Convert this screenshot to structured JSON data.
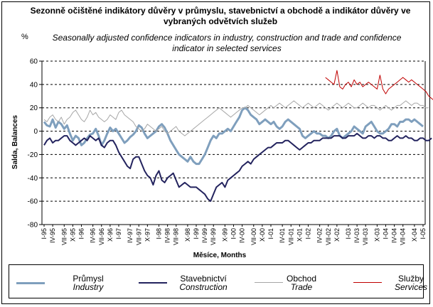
{
  "title_cz": "Sezonně očištěné indikátory důvěry v průmyslu, stavebnictví a obchodě a indikátor důvěry ve vybraných odvětvích služeb",
  "title_en": "Seasonally adjusted confidence indicators in industry, construction and trade and confidence indicator in selected services",
  "percent": "%",
  "chart_data": {
    "type": "line",
    "ylabel": "Salda, Balances",
    "xlabel": "Měsíce, Months",
    "ylim": [
      -80,
      60
    ],
    "yticks": [
      -80,
      -60,
      -40,
      -20,
      0,
      20,
      40,
      60
    ],
    "grid": "horizontal dashed",
    "x_tick_labels": [
      "I-95",
      "IV-95",
      "VII-95",
      "X-95",
      "I-96",
      "IV-96",
      "VII-96",
      "X-96",
      "I-97",
      "IV-97",
      "VII-97",
      "X-97",
      "I-98",
      "IV-98",
      "VII-98",
      "X-98",
      "I-99",
      "IV-99",
      "VII-99",
      "X-99",
      "I-00",
      "IV-00",
      "VII-00",
      "X-00",
      "I-01",
      "IV-01",
      "VII-01",
      "X-01",
      "I-02",
      "IV-02",
      "VII-02",
      "X-02",
      "I-03",
      "IV-03",
      "VII-03",
      "X-03",
      "I-04",
      "IV-04",
      "VII-04",
      "X-04",
      "I-05"
    ],
    "series": [
      {
        "name": "Průmysl",
        "name_en": "Industry",
        "color": "#7f9fbd",
        "width": 3,
        "values": [
          8,
          5,
          4,
          10,
          3,
          8,
          6,
          2,
          5,
          -2,
          -8,
          -4,
          -6,
          -12,
          -10,
          -6,
          -3,
          -2,
          2,
          -4,
          -12,
          -8,
          -2,
          3,
          0,
          2,
          -2,
          -6,
          -10,
          -8,
          -5,
          -3,
          0,
          5,
          3,
          -2,
          -6,
          -4,
          -2,
          0,
          4,
          6,
          3,
          -2,
          -8,
          -12,
          -16,
          -20,
          -22,
          -24,
          -26,
          -22,
          -26,
          -28,
          -28,
          -24,
          -20,
          -14,
          -8,
          -4,
          -6,
          -2,
          -2,
          0,
          2,
          0,
          4,
          8,
          12,
          18,
          20,
          18,
          14,
          12,
          10,
          6,
          8,
          10,
          8,
          6,
          8,
          4,
          2,
          4,
          8,
          10,
          8,
          6,
          4,
          2,
          -4,
          -6,
          -4,
          -2,
          0,
          -2,
          -2,
          -4,
          -4,
          -6,
          -4,
          0,
          2,
          -4,
          -6,
          -4,
          -2,
          0,
          4,
          2,
          0,
          -2,
          4,
          6,
          8,
          4,
          0,
          -2,
          -2,
          0,
          2,
          6,
          6,
          4,
          8,
          8,
          10,
          10,
          8,
          10,
          8,
          6,
          4
        ]
      },
      {
        "name": "Stavebnictví",
        "name_en": "Construction",
        "color": "#23235e",
        "width": 2,
        "values": [
          -12,
          -8,
          -6,
          -10,
          -8,
          -8,
          -6,
          -4,
          -4,
          -8,
          -10,
          -12,
          -10,
          -8,
          -6,
          -8,
          -4,
          -6,
          -8,
          -6,
          -12,
          -14,
          -10,
          -8,
          -8,
          -12,
          -18,
          -22,
          -26,
          -30,
          -32,
          -24,
          -22,
          -22,
          -28,
          -34,
          -38,
          -40,
          -46,
          -38,
          -34,
          -42,
          -44,
          -40,
          -38,
          -36,
          -42,
          -48,
          -46,
          -44,
          -46,
          -48,
          -48,
          -48,
          -50,
          -52,
          -54,
          -58,
          -60,
          -54,
          -48,
          -46,
          -44,
          -48,
          -42,
          -40,
          -38,
          -36,
          -34,
          -30,
          -28,
          -26,
          -28,
          -24,
          -22,
          -20,
          -18,
          -16,
          -14,
          -14,
          -12,
          -10,
          -10,
          -10,
          -8,
          -8,
          -10,
          -12,
          -14,
          -16,
          -14,
          -12,
          -10,
          -10,
          -8,
          -8,
          -8,
          -6,
          -6,
          -6,
          -6,
          -4,
          -4,
          -4,
          -6,
          -6,
          -4,
          -4,
          -4,
          -2,
          -4,
          -6,
          -6,
          -4,
          -4,
          -6,
          -4,
          -4,
          -6,
          -6,
          -8,
          -8,
          -6,
          -4,
          -6,
          -6,
          -4,
          -6,
          -6,
          -8,
          -8,
          -6,
          -6,
          -8,
          -8,
          -6
        ]
      },
      {
        "name": "Obchod",
        "name_en": "Trade",
        "color": "#a6a6a6",
        "width": 1,
        "values": [
          10,
          8,
          12,
          14,
          10,
          8,
          12,
          6,
          10,
          12,
          16,
          18,
          14,
          10,
          8,
          12,
          18,
          14,
          16,
          12,
          10,
          8,
          10,
          14,
          12,
          10,
          16,
          18,
          14,
          12,
          10,
          8,
          4,
          2,
          0,
          2,
          6,
          4,
          2,
          0,
          2,
          4,
          0,
          -2,
          0,
          2,
          4,
          0,
          -2,
          -4,
          -2,
          0,
          2,
          4,
          6,
          8,
          10,
          12,
          14,
          16,
          18,
          20,
          18,
          16,
          14,
          12,
          14,
          16,
          18,
          20,
          20,
          22,
          20,
          18,
          16,
          14,
          16,
          18,
          20,
          22,
          20,
          22,
          24,
          22,
          20,
          22,
          24,
          26,
          24,
          22,
          20,
          22,
          24,
          22,
          20,
          22,
          24,
          22,
          20,
          18,
          20,
          22,
          24,
          22,
          20,
          22,
          24,
          22,
          20,
          20,
          22,
          24,
          22,
          20,
          22,
          22,
          20,
          18,
          20,
          22,
          20,
          18,
          20,
          22,
          22,
          24,
          26,
          24,
          22,
          24,
          24,
          22,
          22,
          20,
          20
        ]
      },
      {
        "name": "Služby",
        "name_en": "Services",
        "color": "#c00000",
        "width": 1,
        "values": [
          null,
          null,
          null,
          null,
          null,
          null,
          null,
          null,
          null,
          null,
          null,
          null,
          null,
          null,
          null,
          null,
          null,
          null,
          null,
          null,
          null,
          null,
          null,
          null,
          null,
          null,
          null,
          null,
          null,
          null,
          null,
          null,
          null,
          null,
          null,
          null,
          null,
          null,
          null,
          null,
          null,
          null,
          null,
          null,
          null,
          null,
          null,
          null,
          null,
          null,
          null,
          null,
          null,
          null,
          null,
          null,
          null,
          null,
          null,
          null,
          null,
          null,
          null,
          null,
          null,
          null,
          null,
          null,
          null,
          null,
          null,
          null,
          null,
          null,
          null,
          null,
          null,
          null,
          null,
          null,
          null,
          null,
          null,
          null,
          null,
          null,
          null,
          null,
          null,
          null,
          null,
          null,
          null,
          null,
          null,
          null,
          null,
          null,
          46,
          44,
          42,
          40,
          52,
          38,
          36,
          40,
          42,
          38,
          44,
          40,
          42,
          38,
          40,
          42,
          40,
          38,
          36,
          48,
          36,
          32,
          36,
          38,
          40,
          42,
          44,
          46,
          44,
          42,
          44,
          42,
          40,
          38,
          36,
          34,
          30,
          28,
          26,
          30
        ]
      }
    ]
  },
  "legend": [
    {
      "cz": "Průmysl",
      "en": "Industry"
    },
    {
      "cz": "Stavebnictví",
      "en": "Construction"
    },
    {
      "cz": "Obchod",
      "en": "Trade"
    },
    {
      "cz": "Služby",
      "en": "Services"
    }
  ]
}
